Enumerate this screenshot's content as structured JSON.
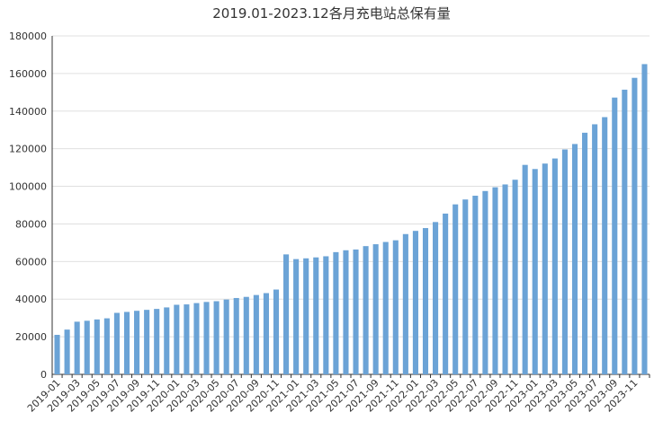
{
  "chart_data": {
    "type": "bar",
    "title": "2019.01-2023.12各月充电站总保有量",
    "xlabel": "",
    "ylabel": "",
    "ylim": [
      0,
      180000
    ],
    "yticks": [
      0,
      20000,
      40000,
      60000,
      80000,
      100000,
      120000,
      140000,
      160000,
      180000
    ],
    "grid": true,
    "bar_color": "#6ba3d6",
    "categories": [
      "2019-01",
      "2019-02",
      "2019-03",
      "2019-04",
      "2019-05",
      "2019-06",
      "2019-07",
      "2019-08",
      "2019-09",
      "2019-10",
      "2019-11",
      "2019-12",
      "2020-01",
      "2020-02",
      "2020-03",
      "2020-04",
      "2020-05",
      "2020-06",
      "2020-07",
      "2020-08",
      "2020-09",
      "2020-10",
      "2020-11",
      "2020-12",
      "2021-01",
      "2021-02",
      "2021-03",
      "2021-04",
      "2021-05",
      "2021-06",
      "2021-07",
      "2021-08",
      "2021-09",
      "2021-10",
      "2021-11",
      "2021-12",
      "2022-01",
      "2022-02",
      "2022-03",
      "2022-04",
      "2022-05",
      "2022-06",
      "2022-07",
      "2022-08",
      "2022-09",
      "2022-10",
      "2022-11",
      "2022-12",
      "2023-01",
      "2023-02",
      "2023-03",
      "2023-04",
      "2023-05",
      "2023-06",
      "2023-07",
      "2023-08",
      "2023-09",
      "2023-10",
      "2023-11",
      "2023-12"
    ],
    "values": [
      21000,
      23800,
      28000,
      28500,
      29200,
      29800,
      32700,
      33200,
      33800,
      34300,
      34800,
      35600,
      37000,
      37200,
      37900,
      38500,
      38900,
      39800,
      40600,
      41200,
      42200,
      43200,
      45100,
      63800,
      61300,
      61700,
      62200,
      62800,
      65000,
      66000,
      66400,
      68200,
      69200,
      70400,
      71300,
      74600,
      76300,
      77800,
      81000,
      85500,
      90400,
      93000,
      95000,
      97500,
      99500,
      101000,
      103500,
      111400,
      109200,
      112100,
      114800,
      119600,
      122500,
      128500,
      133000,
      136800,
      147200,
      151400,
      157700,
      165000
    ],
    "xtick_labels": [
      "2019-01",
      "2019-03",
      "2019-05",
      "2019-07",
      "2019-09",
      "2019-11",
      "2020-01",
      "2020-03",
      "2020-05",
      "2020-07",
      "2020-09",
      "2020-11",
      "2021-01",
      "2021-03",
      "2021-05",
      "2021-07",
      "2021-09",
      "2021-11",
      "2022-01",
      "2022-03",
      "2022-05",
      "2022-07",
      "2022-09",
      "2022-11",
      "2023-01",
      "2023-03",
      "2023-05",
      "2023-07",
      "2023-09",
      "2023-11"
    ]
  }
}
